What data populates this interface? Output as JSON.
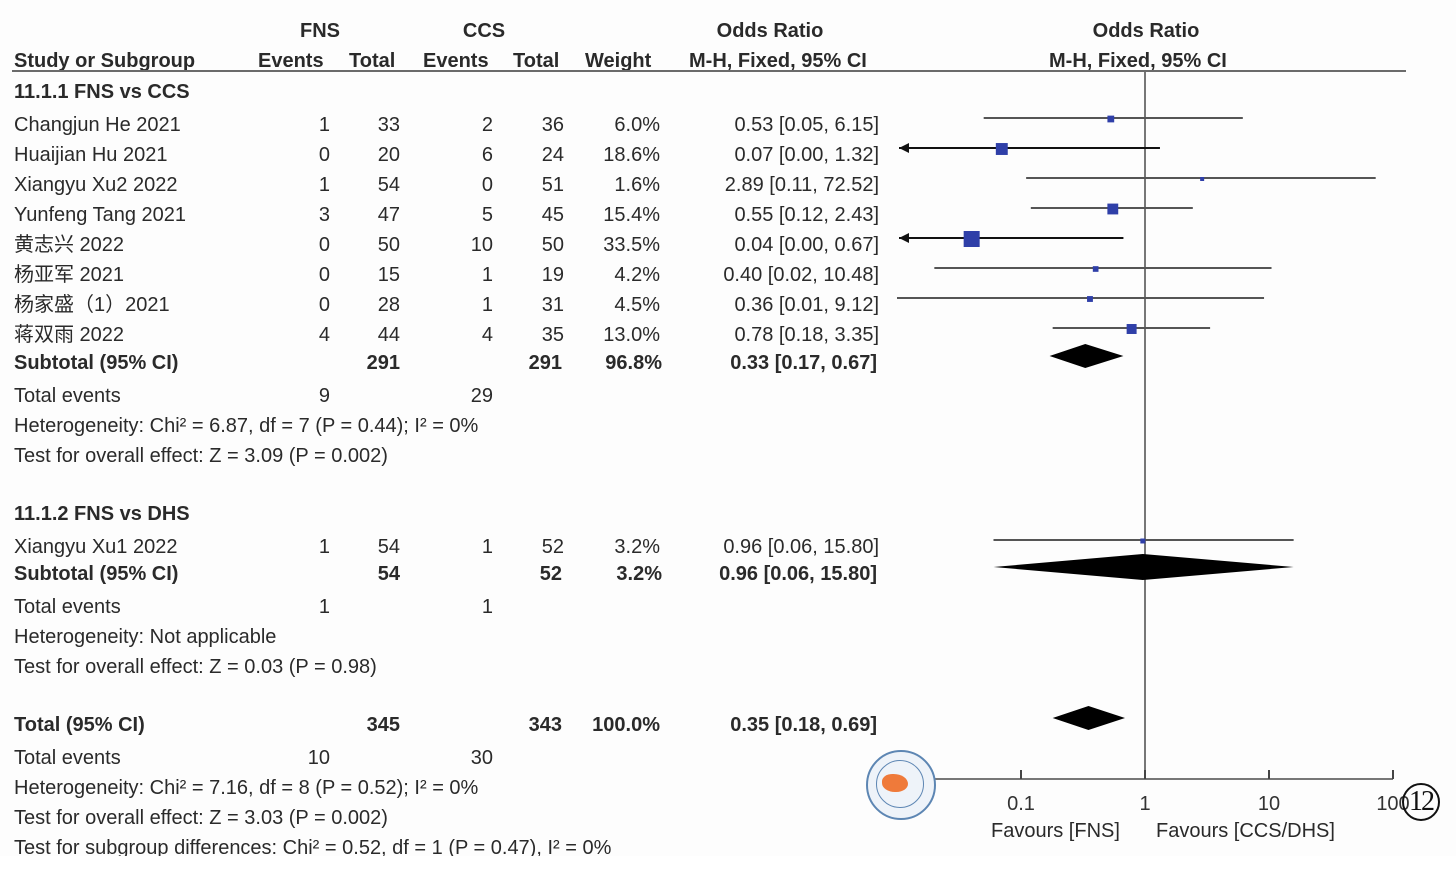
{
  "header": {
    "group1": "FNS",
    "group2": "CCS",
    "or_title": "Odds Ratio",
    "or_method": "M-H, Fixed, 95% CI",
    "plot_title": "Odds Ratio",
    "plot_method": "M-H, Fixed, 95% CI",
    "col_study": "Study or Subgroup",
    "col_events1": "Events",
    "col_total1": "Total",
    "col_events2": "Events",
    "col_total2": "Total",
    "col_weight": "Weight"
  },
  "subgroups": [
    {
      "title": "11.1.1 FNS vs CCS",
      "studies": [
        {
          "name": "Changjun He 2021",
          "e1": "1",
          "t1": "33",
          "e2": "2",
          "t2": "36",
          "weight": "6.0%",
          "or_text": "0.53 [0.05, 6.15]"
        },
        {
          "name": "Huaijian Hu 2021",
          "e1": "0",
          "t1": "20",
          "e2": "6",
          "t2": "24",
          "weight": "18.6%",
          "or_text": "0.07 [0.00, 1.32]"
        },
        {
          "name": "Xiangyu Xu2 2022",
          "e1": "1",
          "t1": "54",
          "e2": "0",
          "t2": "51",
          "weight": "1.6%",
          "or_text": "2.89 [0.11, 72.52]"
        },
        {
          "name": "Yunfeng Tang 2021",
          "e1": "3",
          "t1": "47",
          "e2": "5",
          "t2": "45",
          "weight": "15.4%",
          "or_text": "0.55 [0.12, 2.43]"
        },
        {
          "name": "黄志兴 2022",
          "e1": "0",
          "t1": "50",
          "e2": "10",
          "t2": "50",
          "weight": "33.5%",
          "or_text": "0.04 [0.00, 0.67]"
        },
        {
          "name": "杨亚军 2021",
          "e1": "0",
          "t1": "15",
          "e2": "1",
          "t2": "19",
          "weight": "4.2%",
          "or_text": "0.40 [0.02, 10.48]"
        },
        {
          "name": "杨家盛（1）2021",
          "e1": "0",
          "t1": "28",
          "e2": "1",
          "t2": "31",
          "weight": "4.5%",
          "or_text": "0.36 [0.01, 9.12]"
        },
        {
          "name": "蒋双雨 2022",
          "e1": "4",
          "t1": "44",
          "e2": "4",
          "t2": "35",
          "weight": "13.0%",
          "or_text": "0.78 [0.18, 3.35]"
        }
      ],
      "subtotal": {
        "label": "Subtotal (95% CI)",
        "t1": "291",
        "t2": "291",
        "weight": "96.8%",
        "or_text": "0.33 [0.17, 0.67]"
      },
      "total_events": {
        "label": "Total events",
        "e1": "9",
        "e2": "29"
      },
      "heterogeneity": "Heterogeneity: Chi² = 6.87, df = 7 (P = 0.44); I² = 0%",
      "overall": "Test for overall effect: Z = 3.09 (P = 0.002)"
    },
    {
      "title": "11.1.2 FNS vs DHS",
      "studies": [
        {
          "name": "Xiangyu Xu1 2022",
          "e1": "1",
          "t1": "54",
          "e2": "1",
          "t2": "52",
          "weight": "3.2%",
          "or_text": "0.96 [0.06, 15.80]"
        }
      ],
      "subtotal": {
        "label": "Subtotal (95% CI)",
        "t1": "54",
        "t2": "52",
        "weight": "3.2%",
        "or_text": "0.96 [0.06, 15.80]"
      },
      "total_events": {
        "label": "Total events",
        "e1": "1",
        "e2": "1"
      },
      "heterogeneity": "Heterogeneity: Not applicable",
      "overall": "Test for overall effect: Z = 0.03 (P = 0.98)"
    }
  ],
  "total": {
    "label": "Total (95% CI)",
    "t1": "345",
    "t2": "343",
    "weight": "100.0%",
    "or_text": "0.35 [0.18, 0.69]",
    "events_label": "Total events",
    "e1": "10",
    "e2": "30",
    "heterogeneity": "Heterogeneity: Chi² = 7.16, df = 8 (P = 0.52); I² = 0%",
    "overall": "Test for overall effect: Z = 3.03 (P = 0.002)",
    "subgroup_diff": "Test for subgroup differences: Chi² = 0.52, df = 1 (P = 0.47), I² = 0%"
  },
  "axis": {
    "favours_left": "Favours [FNS]",
    "favours_right": "Favours [CCS/DHS]"
  },
  "figure_label": "12",
  "colors": {
    "marker": "#2f3fa8",
    "diamond": "#000000",
    "line": "#555555",
    "axis": "#777777"
  },
  "chart_data": {
    "type": "forest",
    "title": "Odds Ratio M-H, Fixed, 95% CI",
    "xscale": "log",
    "xlim": [
      0.01,
      100
    ],
    "xticks": [
      "0.01",
      "0.1",
      "1",
      "10",
      "100"
    ],
    "xtick_values": [
      0.01,
      0.1,
      1,
      10,
      100
    ],
    "null_line": 1,
    "xlabel_left": "Favours [FNS]",
    "xlabel_right": "Favours [CCS/DHS]",
    "studies": [
      {
        "name": "Changjun He 2021",
        "or": 0.53,
        "lo": 0.05,
        "hi": 6.15,
        "weight": 6.0
      },
      {
        "name": "Huaijian Hu 2021",
        "or": 0.07,
        "lo": 0.0,
        "hi": 1.32,
        "weight": 18.6
      },
      {
        "name": "Xiangyu Xu2 2022",
        "or": 2.89,
        "lo": 0.11,
        "hi": 72.52,
        "weight": 1.6
      },
      {
        "name": "Yunfeng Tang 2021",
        "or": 0.55,
        "lo": 0.12,
        "hi": 2.43,
        "weight": 15.4
      },
      {
        "name": "黄志兴 2022",
        "or": 0.04,
        "lo": 0.0,
        "hi": 0.67,
        "weight": 33.5
      },
      {
        "name": "杨亚军 2021",
        "or": 0.4,
        "lo": 0.02,
        "hi": 10.48,
        "weight": 4.2
      },
      {
        "name": "杨家盛（1）2021",
        "or": 0.36,
        "lo": 0.01,
        "hi": 9.12,
        "weight": 4.5
      },
      {
        "name": "蒋双雨 2022",
        "or": 0.78,
        "lo": 0.18,
        "hi": 3.35,
        "weight": 13.0
      },
      {
        "name": "Xiangyu Xu1 2022",
        "or": 0.96,
        "lo": 0.06,
        "hi": 15.8,
        "weight": 3.2
      }
    ],
    "summaries": [
      {
        "name": "Subtotal 11.1.1",
        "or": 0.33,
        "lo": 0.17,
        "hi": 0.67
      },
      {
        "name": "Subtotal 11.1.2",
        "or": 0.96,
        "lo": 0.06,
        "hi": 15.8
      },
      {
        "name": "Total",
        "or": 0.35,
        "lo": 0.18,
        "hi": 0.69
      }
    ]
  }
}
